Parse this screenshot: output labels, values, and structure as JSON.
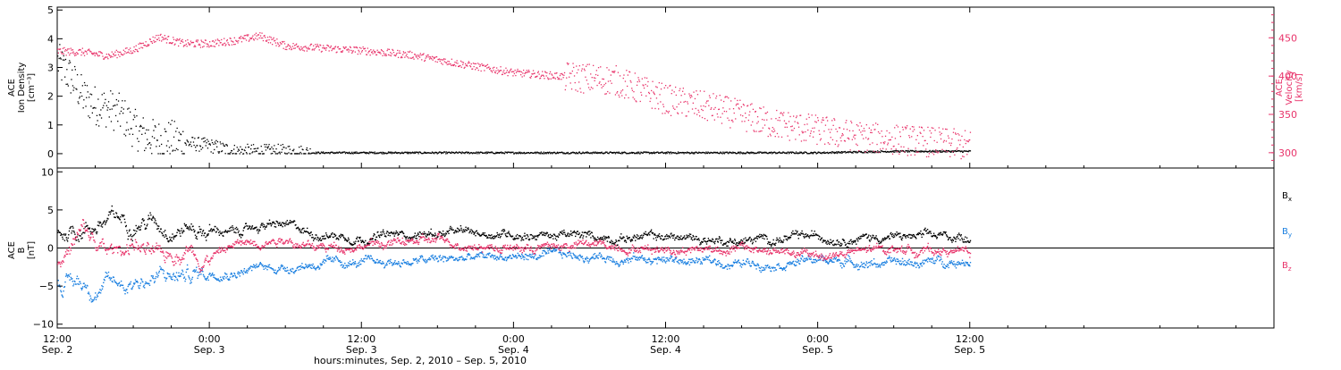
{
  "chart_data": [
    {
      "type": "scatter",
      "panel": "top",
      "ylabel_left": [
        "ACE",
        "Ion Density",
        "[cm⁻³]"
      ],
      "ylabel_right": [
        "ACE",
        "Velocity",
        "[km/s]"
      ],
      "ylim_left": [
        -0.5,
        5.1
      ],
      "ylim_right": [
        280,
        490
      ],
      "yticks_left": [
        "0",
        "1",
        "2",
        "3",
        "4",
        "5"
      ],
      "yticks_right": [
        "300",
        "350",
        "400",
        "450"
      ],
      "series": [
        {
          "axis": "left",
          "color": "#000000",
          "x_hours": [
            0,
            1,
            2,
            3,
            4,
            5,
            6,
            7,
            8,
            9,
            10,
            12,
            14,
            16,
            18,
            20,
            24,
            30,
            36,
            42,
            48,
            54,
            60,
            66,
            72
          ],
          "values": [
            3.2,
            2.7,
            2.0,
            1.7,
            1.6,
            1.4,
            0.9,
            0.6,
            0.5,
            0.5,
            0.4,
            0.3,
            0.1,
            0.1,
            0.1,
            0.05,
            0.05,
            0.05,
            0.05,
            0.05,
            0.05,
            0.05,
            0.05,
            0.1,
            0.1
          ]
        },
        {
          "axis": "right",
          "color": "#e8336a",
          "x_hours": [
            0,
            2,
            4,
            6,
            8,
            9,
            10,
            12,
            14,
            16,
            18,
            20,
            24,
            28,
            32,
            36,
            40,
            44,
            48,
            52,
            56,
            60,
            64,
            68,
            72
          ],
          "values": [
            433,
            432,
            427,
            435,
            452,
            447,
            443,
            443,
            447,
            453,
            440,
            438,
            434,
            428,
            416,
            405,
            400,
            395,
            370,
            358,
            340,
            330,
            320,
            316,
            310
          ]
        }
      ]
    },
    {
      "type": "scatter",
      "panel": "bottom",
      "ylabel": [
        "ACE",
        "B",
        "[nT]"
      ],
      "ylim": [
        -10.5,
        10.5
      ],
      "yticks": [
        "10",
        "5",
        "0",
        "−5",
        "−10"
      ],
      "series": [
        {
          "name": "B",
          "sub": "x",
          "color": "#000000",
          "x_hours": [
            0,
            2,
            4,
            6,
            8,
            10,
            12,
            14,
            16,
            18,
            20,
            24,
            30,
            36,
            42,
            48,
            54,
            60,
            66,
            72
          ],
          "values": [
            2.0,
            3.0,
            3.5,
            4.0,
            3.5,
            3.0,
            2.5,
            2.0,
            3.0,
            3.0,
            2.0,
            1.5,
            2.0,
            2.0,
            1.5,
            1.5,
            1.0,
            1.5,
            1.5,
            1.5
          ]
        },
        {
          "name": "B",
          "sub": "y",
          "color": "#1a7fe0",
          "x_hours": [
            0,
            2,
            4,
            6,
            8,
            10,
            12,
            14,
            16,
            18,
            20,
            24,
            30,
            36,
            42,
            48,
            54,
            60,
            66,
            72
          ],
          "values": [
            -5.0,
            -4.5,
            -5.0,
            -4.0,
            -4.0,
            -3.5,
            -3.0,
            -3.0,
            -2.5,
            -2.5,
            -2.0,
            -2.0,
            -1.5,
            -1.0,
            -1.0,
            -1.5,
            -2.0,
            -1.5,
            -2.0,
            -1.5
          ]
        },
        {
          "name": "B",
          "sub": "z",
          "color": "#e8336a",
          "x_hours": [
            0,
            2,
            4,
            6,
            8,
            10,
            12,
            14,
            16,
            18,
            20,
            24,
            30,
            36,
            42,
            48,
            54,
            60,
            66,
            72
          ],
          "values": [
            -2.0,
            2.0,
            -1.0,
            1.0,
            -2.0,
            0.5,
            -1.0,
            0.5,
            1.0,
            1.5,
            0.0,
            0.5,
            1.0,
            0.0,
            0.5,
            0.0,
            0.0,
            -1.0,
            0.0,
            -0.5
          ]
        }
      ]
    }
  ],
  "x_axis": {
    "range_hours": [
      0,
      96
    ],
    "ticks": [
      {
        "time": "12:00",
        "date": "Sep. 2"
      },
      {
        "time": "0:00",
        "date": "Sep. 3"
      },
      {
        "time": "12:00",
        "date": "Sep. 3"
      },
      {
        "time": "0:00",
        "date": "Sep. 4"
      },
      {
        "time": "12:00",
        "date": "Sep. 4"
      },
      {
        "time": "0:00",
        "date": "Sep. 5"
      },
      {
        "time": "12:00",
        "date": "Sep. 5"
      }
    ],
    "xlabel": "hours:minutes, Sep.  2, 2010 – Sep.  5, 2010"
  }
}
